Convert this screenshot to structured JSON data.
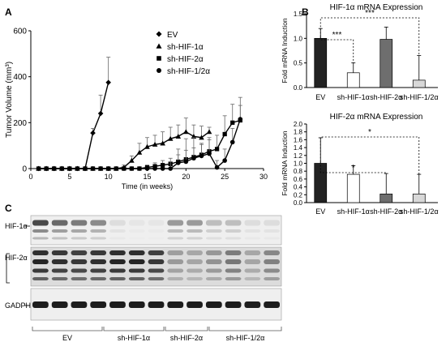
{
  "panels": {
    "a": "A",
    "b": "B",
    "c": "C"
  },
  "chart_data": [
    {
      "panel": "A",
      "type": "line",
      "xlabel": "Time (in weeks)",
      "ylabel": "Tumor Volume (mm³)",
      "xlim": [
        0,
        30
      ],
      "ylim": [
        0,
        600
      ],
      "xticks": [
        0,
        5,
        10,
        15,
        20,
        25,
        30
      ],
      "yticks": [
        0,
        200,
        400,
        600
      ],
      "legend_position": "top-left",
      "series": [
        {
          "name": "EV",
          "marker": "diamond",
          "x": [
            1,
            2,
            3,
            4,
            5,
            6,
            7,
            8,
            9,
            10
          ],
          "y": [
            0,
            0,
            0,
            0,
            0,
            0,
            0,
            155,
            240,
            375
          ],
          "err": [
            0,
            0,
            0,
            0,
            0,
            0,
            0,
            20,
            80,
            110
          ]
        },
        {
          "name": "sh-HIF-1α",
          "marker": "triangle",
          "x": [
            1,
            2,
            3,
            4,
            5,
            6,
            7,
            8,
            9,
            10,
            11,
            12,
            13,
            14,
            15,
            16,
            17,
            18,
            19,
            20,
            21,
            22,
            23
          ],
          "y": [
            0,
            0,
            0,
            0,
            0,
            0,
            0,
            0,
            0,
            0,
            0,
            5,
            35,
            70,
            95,
            105,
            110,
            130,
            140,
            160,
            140,
            135,
            160
          ],
          "err": [
            0,
            0,
            0,
            0,
            0,
            0,
            0,
            0,
            0,
            0,
            0,
            10,
            20,
            40,
            40,
            40,
            50,
            50,
            50,
            60,
            50,
            50,
            20
          ]
        },
        {
          "name": "sh-HIF-2α",
          "marker": "square",
          "x": [
            1,
            2,
            3,
            4,
            5,
            6,
            7,
            8,
            9,
            10,
            11,
            12,
            13,
            14,
            15,
            16,
            17,
            18,
            19,
            20,
            21,
            22,
            23,
            24,
            25,
            26,
            27
          ],
          "y": [
            0,
            0,
            0,
            0,
            0,
            0,
            0,
            0,
            0,
            0,
            0,
            0,
            0,
            0,
            5,
            10,
            15,
            20,
            30,
            40,
            50,
            60,
            75,
            85,
            150,
            200,
            210
          ],
          "err": [
            0,
            0,
            0,
            0,
            0,
            0,
            0,
            0,
            0,
            0,
            0,
            0,
            0,
            0,
            10,
            15,
            20,
            25,
            30,
            40,
            40,
            50,
            60,
            60,
            80,
            80,
            100
          ]
        },
        {
          "name": "sh-HIF-1/2α",
          "marker": "circle",
          "x": [
            1,
            2,
            3,
            4,
            5,
            6,
            7,
            8,
            9,
            10,
            11,
            12,
            13,
            14,
            15,
            16,
            17,
            18,
            19,
            20,
            21,
            22,
            23,
            24,
            25,
            26,
            27
          ],
          "y": [
            0,
            0,
            0,
            0,
            0,
            0,
            0,
            0,
            0,
            0,
            0,
            0,
            0,
            0,
            0,
            0,
            0,
            0,
            25,
            30,
            45,
            55,
            65,
            5,
            35,
            115,
            215
          ],
          "err": [
            0,
            0,
            0,
            0,
            0,
            0,
            0,
            0,
            0,
            0,
            0,
            0,
            0,
            0,
            0,
            0,
            0,
            30,
            60,
            100,
            90,
            50,
            60,
            30,
            50,
            60,
            60
          ]
        }
      ]
    },
    {
      "panel": "B-top",
      "type": "bar",
      "title": "HIF-1α mRNA Expression",
      "ylabel": "Fold mRNA Induction",
      "ylim": [
        0,
        1.5
      ],
      "yticks": [
        0.0,
        0.5,
        1.0,
        1.5
      ],
      "categories": [
        "EV",
        "sh-HIF-1α",
        "sh-HIF-2α",
        "sh-HIF-1/2α"
      ],
      "values": [
        1.0,
        0.3,
        0.98,
        0.15
      ],
      "errors": [
        0.2,
        0.2,
        0.25,
        0.5
      ],
      "colors": [
        "#222222",
        "#ffffff",
        "#6e6e6e",
        "#d8d8d8"
      ],
      "significance": [
        {
          "from": 0,
          "to": 1,
          "label": "***"
        },
        {
          "from": 0,
          "to": 3,
          "label": "***"
        }
      ]
    },
    {
      "panel": "B-bottom",
      "type": "bar",
      "title": "HIF-2α mRNA Expression",
      "ylabel": "Fold mRNA Induction",
      "ylim": [
        0,
        2.0
      ],
      "yticks": [
        0.0,
        0.2,
        0.4,
        0.6,
        0.8,
        1.0,
        1.2,
        1.4,
        1.6,
        1.8,
        2.0
      ],
      "categories": [
        "EV",
        "sh-HIF-1α",
        "sh-HIF-2α",
        "sh-HIF-1/2α"
      ],
      "values": [
        1.0,
        0.72,
        0.22,
        0.22
      ],
      "errors": [
        0.65,
        0.22,
        0.52,
        0.5
      ],
      "colors": [
        "#222222",
        "#ffffff",
        "#6e6e6e",
        "#d8d8d8"
      ],
      "significance": [
        {
          "from": 0,
          "to": 2,
          "label": "*"
        },
        {
          "from": 0,
          "to": 3,
          "label": "*"
        }
      ]
    }
  ],
  "blot": {
    "rows": [
      "HIF-1α",
      "HIF-2α",
      "GADPH"
    ],
    "groups": [
      "EV",
      "sh-HIF-1α",
      "sh-HIF-2α",
      "sh-HIF-1/2α"
    ]
  }
}
